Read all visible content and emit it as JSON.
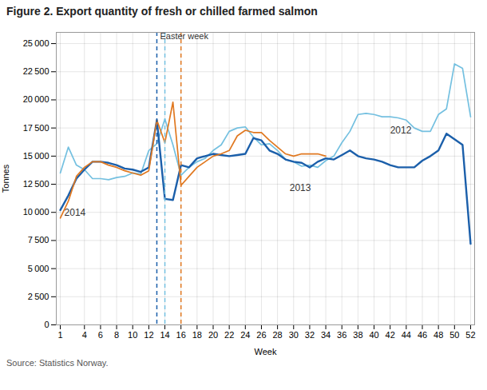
{
  "chart_data": {
    "type": "line",
    "title": "Figure 2. Export quantity of fresh or chilled farmed salmon",
    "xlabel": "Week",
    "ylabel": "Tonnes",
    "source": "Source: Statistics Norway.",
    "x": [
      1,
      2,
      3,
      4,
      5,
      6,
      7,
      8,
      9,
      10,
      11,
      12,
      13,
      14,
      15,
      16,
      17,
      18,
      19,
      20,
      21,
      22,
      23,
      24,
      25,
      26,
      27,
      28,
      29,
      30,
      31,
      32,
      33,
      34,
      35,
      36,
      37,
      38,
      39,
      40,
      41,
      42,
      43,
      44,
      45,
      46,
      47,
      48,
      49,
      50,
      51,
      52
    ],
    "series": [
      {
        "name": "2012",
        "color": "#74C0E0",
        "values": [
          13500,
          15800,
          14200,
          13800,
          13000,
          13000,
          12900,
          13100,
          13200,
          13500,
          13400,
          15500,
          16100,
          18300,
          16000,
          13300,
          14000,
          14500,
          14800,
          15500,
          16000,
          17200,
          17500,
          17600,
          16700,
          16000,
          16100,
          15500,
          14700,
          14500,
          14100,
          14200,
          14000,
          14600,
          15000,
          16200,
          17200,
          18700,
          18800,
          18700,
          18500,
          18500,
          18400,
          18200,
          17500,
          17200,
          17200,
          18700,
          19200,
          23200,
          22800,
          18500
        ]
      },
      {
        "name": "2013",
        "color": "#1B5FAA",
        "values": [
          10200,
          11500,
          13000,
          13800,
          14500,
          14500,
          14400,
          14200,
          13900,
          13800,
          13600,
          14000,
          18200,
          11200,
          11100,
          14200,
          14000,
          14800,
          15000,
          15200,
          15100,
          15000,
          15100,
          15200,
          16600,
          16400,
          15500,
          15200,
          14700,
          14500,
          14400,
          14000,
          14500,
          14800,
          14700,
          15100,
          15500,
          15000,
          14800,
          14700,
          14500,
          14200,
          14000,
          14000,
          14000,
          14600,
          15000,
          15500,
          17000,
          16500,
          16000,
          7200
        ]
      },
      {
        "name": "2014",
        "color": "#E07820",
        "values": [
          9500,
          11000,
          13200,
          14000,
          14500,
          14500,
          14200,
          14000,
          13700,
          13500,
          13300,
          13700,
          18200,
          16200,
          19800,
          12400,
          13200,
          14000,
          14500,
          15000,
          15200,
          15500,
          16800,
          17300,
          17100,
          17100,
          16400,
          15800,
          15200,
          15000,
          15200,
          15200,
          15200,
          15000,
          null,
          null,
          null,
          null,
          null,
          null,
          null,
          null,
          null,
          null,
          null,
          null,
          null,
          null,
          null,
          null,
          null,
          null
        ]
      }
    ],
    "vlines": [
      {
        "x": 13,
        "color": "#1B5FAA",
        "line_style": "dashed"
      },
      {
        "x": 14,
        "color": "#74C0E0",
        "line_style": "dashed"
      },
      {
        "x": 16,
        "color": "#E07820",
        "line_style": "dashed"
      }
    ],
    "annotations": [
      {
        "text": "Easter week",
        "x": 13,
        "y": 25400
      },
      {
        "text": "2012",
        "x": 42,
        "y": 17000
      },
      {
        "text": "2013",
        "x": 29.5,
        "y": 11900
      },
      {
        "text": "2014",
        "x": 1.5,
        "y": 9700
      }
    ],
    "xlim": [
      0.5,
      52.5
    ],
    "xticks": [
      1,
      4,
      6,
      8,
      10,
      12,
      14,
      16,
      18,
      20,
      22,
      24,
      26,
      28,
      30,
      32,
      34,
      36,
      38,
      40,
      42,
      44,
      46,
      48,
      50,
      52
    ],
    "ylim": [
      0,
      26000
    ],
    "yticks": [
      0,
      {
        "value": 2500,
        "label": "2 500"
      },
      {
        "value": 5000,
        "label": "5 000"
      },
      {
        "value": 7500,
        "label": "7 500"
      },
      {
        "value": 10000,
        "label": "10 000"
      },
      {
        "value": 12500,
        "label": "12 500"
      },
      {
        "value": 15000,
        "label": "15 000"
      },
      {
        "value": 17500,
        "label": "17 500"
      },
      {
        "value": 20000,
        "label": "20 000"
      },
      {
        "value": 22500,
        "label": "22 500"
      },
      {
        "value": 25000,
        "label": "25 000"
      }
    ],
    "grid": true
  }
}
